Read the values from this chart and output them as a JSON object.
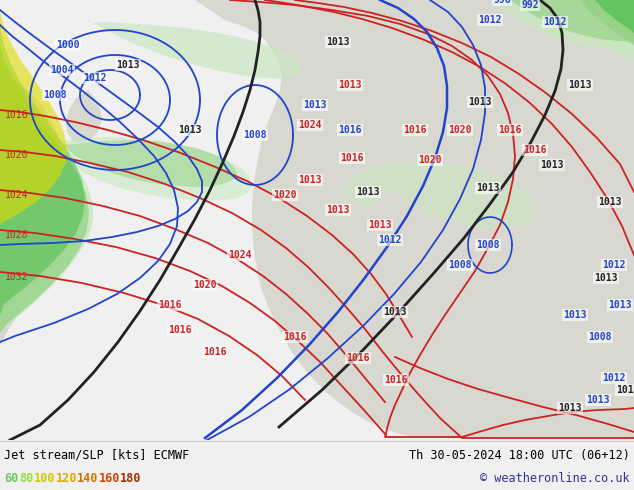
{
  "title_left": "Jet stream/SLP [kts] ECMWF",
  "title_right": "Th 30-05-2024 18:00 UTC (06+12)",
  "copyright": "© weatheronline.co.uk",
  "legend_values": [
    60,
    80,
    100,
    120,
    140,
    160,
    180
  ],
  "legend_colors": [
    "#66cc66",
    "#99dd44",
    "#cccc00",
    "#ddaa00",
    "#cc7700",
    "#cc4400",
    "#993300"
  ],
  "figsize": [
    6.34,
    4.9
  ],
  "dpi": 100,
  "bg_color": "#f0f0f0",
  "ocean_color": "#e8ecf0",
  "land_color": "#d8d8d0",
  "jet_green_light": "#c8e8c0",
  "jet_green_mid": "#90d080",
  "jet_green_bright": "#44bb44",
  "jet_yellow": "#dddd00",
  "jet_orange": "#ee8800",
  "isobar_red": "#cc2222",
  "isobar_blue": "#2244cc",
  "coast_black": "#222222"
}
